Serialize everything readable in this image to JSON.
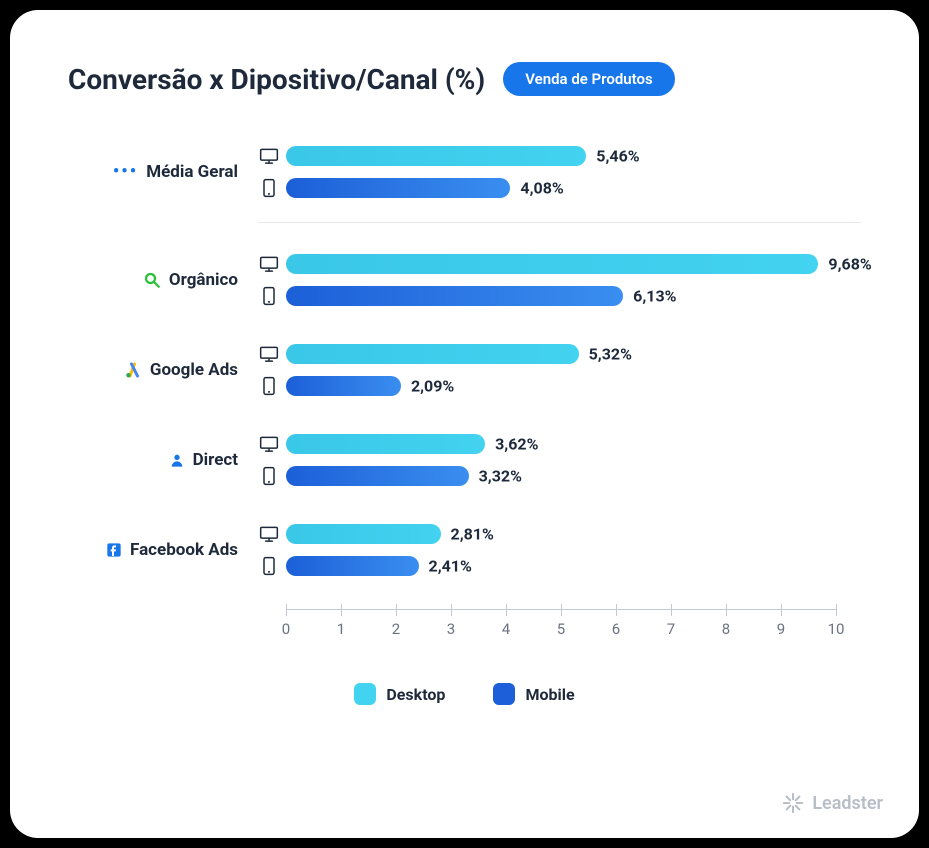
{
  "title": "Conversão x Dipositivo/Canal (%)",
  "badge": "Venda de Produtos",
  "x_axis": {
    "min": 0,
    "max": 10,
    "step": 1
  },
  "colors": {
    "desktop_start": "#3ac7e8",
    "desktop_end": "#42d3f0",
    "mobile_start": "#1c5fd8",
    "mobile_end": "#3a8ef0",
    "badge_bg": "#1777ea",
    "text": "#1e2a3b",
    "axis": "#c4c9d1",
    "divider": "#e5e8ec",
    "card_bg": "#ffffff",
    "page_bg": "#000000",
    "brand_text": "#b8bec7"
  },
  "legend": {
    "desktop": "Desktop",
    "mobile": "Mobile"
  },
  "rows": [
    {
      "id": "media-geral",
      "label": "Média Geral",
      "icon": "dots",
      "desktop": 5.46,
      "desktop_label": "5,46%",
      "mobile": 4.08,
      "mobile_label": "4,08%",
      "section": "general"
    },
    {
      "id": "organico",
      "label": "Orgânico",
      "icon": "search",
      "icon_color": "#2bbf3a",
      "desktop": 9.68,
      "desktop_label": "9,68%",
      "mobile": 6.13,
      "mobile_label": "6,13%",
      "section": "channels"
    },
    {
      "id": "google-ads",
      "label": "Google Ads",
      "icon": "google-ads",
      "desktop": 5.32,
      "desktop_label": "5,32%",
      "mobile": 2.09,
      "mobile_label": "2,09%",
      "section": "channels"
    },
    {
      "id": "direct",
      "label": "Direct",
      "icon": "person",
      "icon_color": "#1777ea",
      "desktop": 3.62,
      "desktop_label": "3,62%",
      "mobile": 3.32,
      "mobile_label": "3,32%",
      "section": "channels"
    },
    {
      "id": "facebook-ads",
      "label": "Facebook Ads",
      "icon": "facebook",
      "icon_color": "#1777ea",
      "desktop": 2.81,
      "desktop_label": "2,81%",
      "mobile": 2.41,
      "mobile_label": "2,41%",
      "section": "channels"
    }
  ],
  "brand": "Leadster"
}
